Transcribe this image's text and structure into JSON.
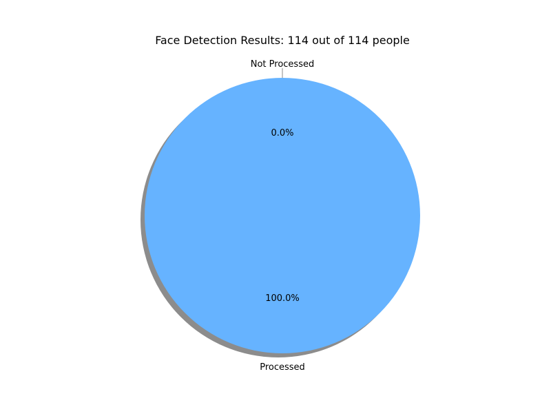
{
  "chart_data": {
    "type": "pie",
    "title": "Face Detection Results: 114 out of 114 people",
    "slices": [
      {
        "label": "Processed",
        "value": 114,
        "percent_label": "100.0%",
        "color": "#66b3ff"
      },
      {
        "label": "Not Processed",
        "value": 0,
        "percent_label": "0.0%",
        "color": "#ff9999"
      }
    ],
    "shadow": true,
    "start_angle_deg": 90,
    "legend": "none",
    "grid": false
  }
}
